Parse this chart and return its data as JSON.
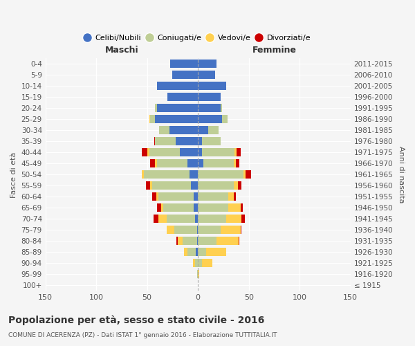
{
  "age_groups": [
    "100+",
    "95-99",
    "90-94",
    "85-89",
    "80-84",
    "75-79",
    "70-74",
    "65-69",
    "60-64",
    "55-59",
    "50-54",
    "45-49",
    "40-44",
    "35-39",
    "30-34",
    "25-29",
    "20-24",
    "15-19",
    "10-14",
    "5-9",
    "0-4"
  ],
  "birth_years": [
    "≤ 1915",
    "1916-1920",
    "1921-1925",
    "1926-1930",
    "1931-1935",
    "1936-1940",
    "1941-1945",
    "1946-1950",
    "1951-1955",
    "1956-1960",
    "1961-1965",
    "1966-1970",
    "1971-1975",
    "1976-1980",
    "1981-1985",
    "1986-1990",
    "1991-1995",
    "1996-2000",
    "2001-2005",
    "2006-2010",
    "2011-2015"
  ],
  "male": {
    "celibi": [
      0,
      0,
      0,
      2,
      1,
      1,
      3,
      4,
      4,
      7,
      8,
      10,
      18,
      22,
      28,
      42,
      40,
      30,
      40,
      25,
      27
    ],
    "coniugati": [
      0,
      1,
      3,
      8,
      14,
      22,
      28,
      30,
      35,
      38,
      45,
      30,
      30,
      20,
      10,
      5,
      2,
      0,
      0,
      0,
      0
    ],
    "vedovi": [
      0,
      0,
      2,
      4,
      5,
      8,
      8,
      2,
      2,
      2,
      2,
      2,
      2,
      0,
      0,
      1,
      0,
      0,
      0,
      0,
      0
    ],
    "divorziati": [
      0,
      0,
      0,
      0,
      1,
      0,
      5,
      4,
      4,
      4,
      0,
      5,
      5,
      1,
      0,
      0,
      0,
      0,
      0,
      0,
      0
    ]
  },
  "female": {
    "nubili": [
      0,
      0,
      0,
      0,
      0,
      0,
      0,
      0,
      0,
      0,
      0,
      5,
      4,
      4,
      10,
      24,
      22,
      22,
      28,
      17,
      18
    ],
    "coniugate": [
      0,
      0,
      4,
      8,
      18,
      22,
      28,
      30,
      30,
      35,
      45,
      30,
      32,
      18,
      10,
      5,
      2,
      0,
      0,
      0,
      0
    ],
    "vedove": [
      0,
      1,
      10,
      20,
      22,
      20,
      15,
      12,
      5,
      4,
      2,
      2,
      2,
      0,
      0,
      0,
      0,
      0,
      0,
      0,
      0
    ],
    "divorziate": [
      0,
      0,
      0,
      0,
      1,
      1,
      3,
      2,
      2,
      4,
      5,
      4,
      4,
      0,
      0,
      0,
      0,
      0,
      0,
      0,
      0
    ]
  },
  "colors": {
    "celibi_nubili": "#4472C4",
    "coniugati": "#BFCE96",
    "vedovi": "#FFD050",
    "divorziati": "#CC0000"
  },
  "title": "Popolazione per età, sesso e stato civile - 2016",
  "subtitle": "COMUNE DI ACERENZA (PZ) - Dati ISTAT 1° gennaio 2016 - Elaborazione TUTTITALIA.IT",
  "xlabel_left": "Maschi",
  "xlabel_right": "Femmine",
  "ylabel_left": "Fasce di età",
  "ylabel_right": "Anni di nascita",
  "xlim": 150,
  "background_color": "#f5f5f5",
  "legend_labels": [
    "Celibi/Nubili",
    "Coniugati/e",
    "Vedovi/e",
    "Divorziati/e"
  ]
}
